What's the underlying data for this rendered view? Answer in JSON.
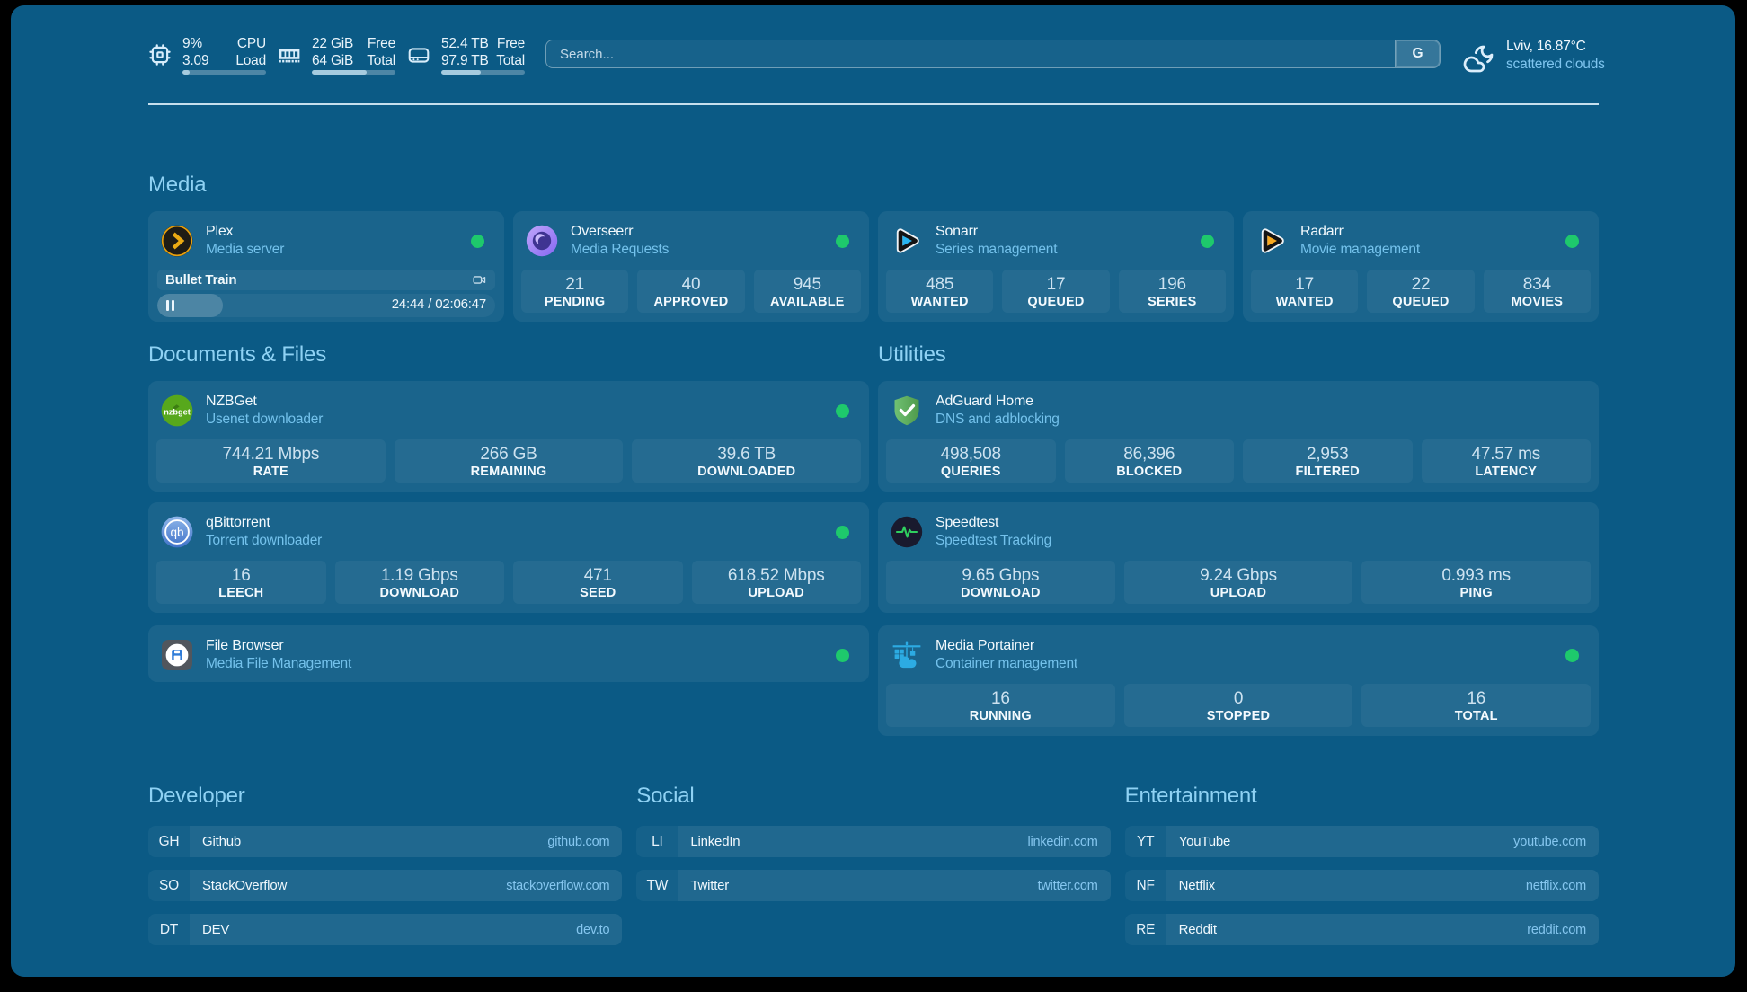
{
  "header": {
    "cpu": {
      "usage": "9%",
      "load": "3.09",
      "label_top": "CPU",
      "label_bottom": "Load",
      "percent": 9
    },
    "memory": {
      "free": "22 GiB",
      "total": "64 GiB",
      "label_top": "Free",
      "label_bottom": "Total",
      "percent": 66
    },
    "disk": {
      "free": "52.4 TB",
      "total": "97.9 TB",
      "label_top": "Free",
      "label_bottom": "Total",
      "percent": 47
    },
    "search": {
      "placeholder": "Search...",
      "button": "G"
    },
    "weather": {
      "location": "Lviv, 16.87°C",
      "condition": "scattered clouds"
    }
  },
  "media": {
    "title": "Media",
    "plex": {
      "name": "Plex",
      "description": "Media server",
      "stream": {
        "title": "Bullet Train",
        "position": "24:44",
        "separator": " / ",
        "duration": "02:06:47",
        "percent": 19.5
      }
    },
    "overseerr": {
      "name": "Overseerr",
      "description": "Media Requests",
      "stats": [
        {
          "value": "21",
          "label": "PENDING"
        },
        {
          "value": "40",
          "label": "APPROVED"
        },
        {
          "value": "945",
          "label": "AVAILABLE"
        }
      ]
    },
    "sonarr": {
      "name": "Sonarr",
      "description": "Series management",
      "stats": [
        {
          "value": "485",
          "label": "WANTED"
        },
        {
          "value": "17",
          "label": "QUEUED"
        },
        {
          "value": "196",
          "label": "SERIES"
        }
      ]
    },
    "radarr": {
      "name": "Radarr",
      "description": "Movie management",
      "stats": [
        {
          "value": "17",
          "label": "WANTED"
        },
        {
          "value": "22",
          "label": "QUEUED"
        },
        {
          "value": "834",
          "label": "MOVIES"
        }
      ]
    }
  },
  "documents": {
    "title": "Documents & Files",
    "nzbget": {
      "name": "NZBGet",
      "description": "Usenet downloader",
      "stats": [
        {
          "value": "744.21 Mbps",
          "label": "RATE"
        },
        {
          "value": "266 GB",
          "label": "REMAINING"
        },
        {
          "value": "39.6 TB",
          "label": "DOWNLOADED"
        }
      ]
    },
    "qbittorrent": {
      "name": "qBittorrent",
      "description": "Torrent downloader",
      "stats": [
        {
          "value": "16",
          "label": "LEECH"
        },
        {
          "value": "1.19 Gbps",
          "label": "DOWNLOAD"
        },
        {
          "value": "471",
          "label": "SEED"
        },
        {
          "value": "618.52 Mbps",
          "label": "UPLOAD"
        }
      ]
    },
    "filebrowser": {
      "name": "File Browser",
      "description": "Media File Management"
    }
  },
  "utilities": {
    "title": "Utilities",
    "adguard": {
      "name": "AdGuard Home",
      "description": "DNS and adblocking",
      "stats": [
        {
          "value": "498,508",
          "label": "QUERIES"
        },
        {
          "value": "86,396",
          "label": "BLOCKED"
        },
        {
          "value": "2,953",
          "label": "FILTERED"
        },
        {
          "value": "47.57 ms",
          "label": "LATENCY"
        }
      ]
    },
    "speedtest": {
      "name": "Speedtest",
      "description": "Speedtest Tracking",
      "stats": [
        {
          "value": "9.65 Gbps",
          "label": "DOWNLOAD"
        },
        {
          "value": "9.24 Gbps",
          "label": "UPLOAD"
        },
        {
          "value": "0.993 ms",
          "label": "PING"
        }
      ]
    },
    "portainer": {
      "name": "Media Portainer",
      "description": "Container management",
      "stats": [
        {
          "value": "16",
          "label": "RUNNING"
        },
        {
          "value": "0",
          "label": "STOPPED"
        },
        {
          "value": "16",
          "label": "TOTAL"
        }
      ]
    }
  },
  "bookmarks": {
    "developer": {
      "title": "Developer",
      "items": [
        {
          "abbr": "GH",
          "name": "Github",
          "url": "github.com"
        },
        {
          "abbr": "SO",
          "name": "StackOverflow",
          "url": "stackoverflow.com"
        },
        {
          "abbr": "DT",
          "name": "DEV",
          "url": "dev.to"
        }
      ]
    },
    "social": {
      "title": "Social",
      "items": [
        {
          "abbr": "LI",
          "name": "LinkedIn",
          "url": "linkedin.com"
        },
        {
          "abbr": "TW",
          "name": "Twitter",
          "url": "twitter.com"
        }
      ]
    },
    "entertainment": {
      "title": "Entertainment",
      "items": [
        {
          "abbr": "YT",
          "name": "YouTube",
          "url": "youtube.com"
        },
        {
          "abbr": "NF",
          "name": "Netflix",
          "url": "netflix.com"
        },
        {
          "abbr": "RE",
          "name": "Reddit",
          "url": "reddit.com"
        }
      ]
    }
  }
}
